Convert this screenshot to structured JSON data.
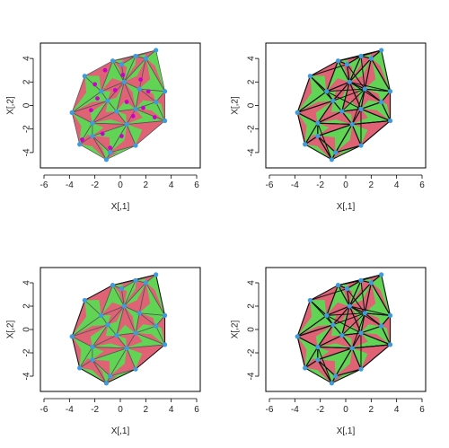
{
  "chart_data": [
    {
      "type": "scatter",
      "overlay": "triangulation-filled",
      "xlabel": "X[,1]",
      "ylabel": "X[,2]",
      "xlim": [
        -6,
        6
      ],
      "ylim": [
        -5,
        5
      ],
      "xticks": [
        "-6",
        "-4",
        "-2",
        "0",
        "2",
        "4",
        "6"
      ],
      "yticks": [
        "-4",
        "-2",
        "0",
        "2",
        "4"
      ],
      "grid": false,
      "triangle_fill_colors": [
        "#df6275",
        "#62d455"
      ],
      "point_color": "#3d9be0",
      "midpoint_color": "#cc00cc",
      "edge_color": "#4a4a4a",
      "midpoints": [
        {
          "x": -1.2,
          "y": 3.0
        },
        {
          "x": -2.0,
          "y": 1.8
        },
        {
          "x": 0.2,
          "y": 2.6
        },
        {
          "x": 1.6,
          "y": 2.2
        },
        {
          "x": 2.2,
          "y": 1.2
        },
        {
          "x": -0.4,
          "y": 1.3
        },
        {
          "x": 0.5,
          "y": 0.3
        },
        {
          "x": 1.0,
          "y": -0.9
        },
        {
          "x": -2.3,
          "y": -0.4
        },
        {
          "x": 2.7,
          "y": -1.0
        },
        {
          "x": -1.4,
          "y": -2.4
        },
        {
          "x": 0.1,
          "y": -2.6
        },
        {
          "x": -3.0,
          "y": -2.9
        },
        {
          "x": -0.8,
          "y": -3.6
        },
        {
          "x": 1.8,
          "y": -0.2
        },
        {
          "x": -1.8,
          "y": 0.6
        }
      ]
    },
    {
      "type": "scatter",
      "overlay": "triangulation-filled-dense",
      "xlabel": "X[,1]",
      "ylabel": "X[,2]",
      "xlim": [
        -6,
        6
      ],
      "ylim": [
        -5,
        5
      ],
      "xticks": [
        "-6",
        "-4",
        "-2",
        "0",
        "2",
        "4",
        "6"
      ],
      "yticks": [
        "-4",
        "-2",
        "0",
        "2",
        "4"
      ],
      "grid": false
    },
    {
      "type": "scatter",
      "overlay": "triangulation-filled-with-hull",
      "xlabel": "X[,1]",
      "ylabel": "X[,2]",
      "xlim": [
        -6,
        6
      ],
      "ylim": [
        -5,
        5
      ],
      "xticks": [
        "-6",
        "-4",
        "-2",
        "0",
        "2",
        "4",
        "6"
      ],
      "yticks": [
        "-4",
        "-2",
        "0",
        "2",
        "4"
      ],
      "grid": false
    },
    {
      "type": "scatter",
      "overlay": "triangulation-filled-dense",
      "xlabel": "X[,1]",
      "ylabel": "X[,2]",
      "xlim": [
        -6,
        6
      ],
      "ylim": [
        -5,
        5
      ],
      "xticks": [
        "-6",
        "-4",
        "-2",
        "0",
        "2",
        "4",
        "6"
      ],
      "yticks": [
        "-4",
        "-2",
        "0",
        "2",
        "4"
      ],
      "grid": false
    }
  ],
  "shared_points": [
    {
      "x": 2.8,
      "y": 4.7
    },
    {
      "x": 1.2,
      "y": 4.2
    },
    {
      "x": 2.0,
      "y": 4.0
    },
    {
      "x": -0.6,
      "y": 3.8
    },
    {
      "x": 0.1,
      "y": 3.5
    },
    {
      "x": -2.8,
      "y": 2.5
    },
    {
      "x": 3.5,
      "y": 1.2
    },
    {
      "x": -1.5,
      "y": 1.2
    },
    {
      "x": 1.5,
      "y": 1.4
    },
    {
      "x": 0.3,
      "y": 2.0
    },
    {
      "x": -0.3,
      "y": -0.5
    },
    {
      "x": 1.2,
      "y": -0.3
    },
    {
      "x": 2.8,
      "y": 0.3
    },
    {
      "x": -3.8,
      "y": -0.6
    },
    {
      "x": 3.5,
      "y": -1.3
    },
    {
      "x": -2.2,
      "y": -1.5
    },
    {
      "x": 0.5,
      "y": -1.6
    },
    {
      "x": -3.2,
      "y": -3.3
    },
    {
      "x": -2.2,
      "y": -2.6
    },
    {
      "x": 1.2,
      "y": -3.4
    },
    {
      "x": -0.8,
      "y": -4.0
    },
    {
      "x": -1.1,
      "y": -4.6
    },
    {
      "x": -1.0,
      "y": 0.4
    }
  ]
}
